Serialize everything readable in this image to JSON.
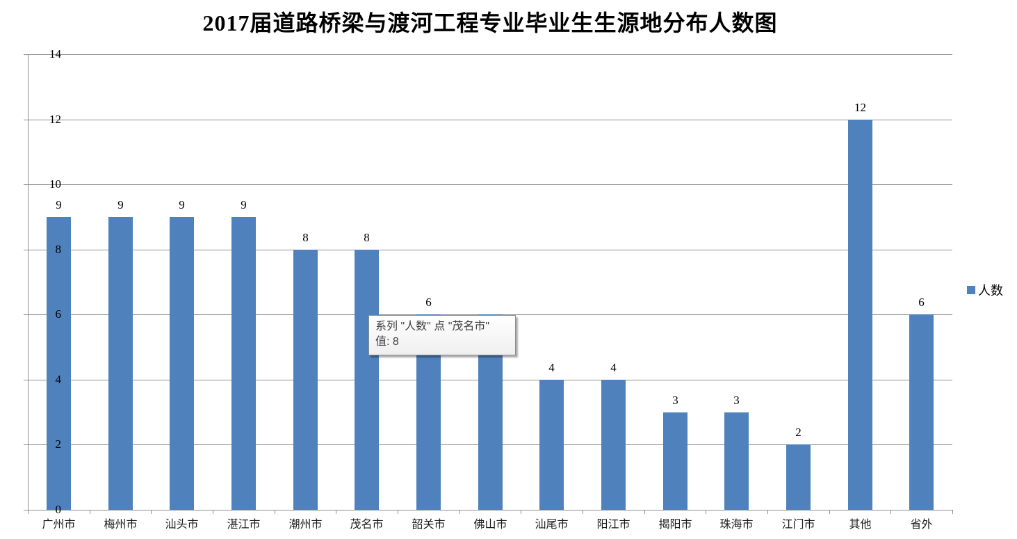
{
  "title": "2017届道路桥梁与渡河工程专业毕业生生源地分布人数图",
  "legend": {
    "label": "人数",
    "marker_color": "#4F81BD"
  },
  "tooltip": {
    "line1": "系列 \"人数\" 点 \"茂名市\"",
    "line2": "值: 8"
  },
  "colors": {
    "bar": "#4F81BD",
    "gridline": "#8E8E8E",
    "axis": "#8E8E8E",
    "text": "#000000"
  },
  "chart_data": {
    "type": "bar",
    "title": "2017届道路桥梁与渡河工程专业毕业生生源地分布人数图",
    "xlabel": "",
    "ylabel": "",
    "series_name": "人数",
    "categories": [
      "广州市",
      "梅州市",
      "汕头市",
      "湛江市",
      "潮州市",
      "茂名市",
      "韶关市",
      "佛山市",
      "汕尾市",
      "阳江市",
      "揭阳市",
      "珠海市",
      "江门市",
      "其他",
      "省外"
    ],
    "values": [
      9,
      9,
      9,
      9,
      8,
      8,
      6,
      6,
      4,
      4,
      3,
      3,
      2,
      12,
      6
    ],
    "data_labels": [
      "9",
      "9",
      "9",
      "9",
      "8",
      "8",
      "6",
      "",
      "4",
      "4",
      "3",
      "3",
      "2",
      "12",
      "6"
    ],
    "ylim": [
      0,
      14
    ],
    "yticks": [
      0,
      2,
      4,
      6,
      8,
      10,
      12,
      14
    ],
    "grid": true,
    "legend_position": "right"
  }
}
